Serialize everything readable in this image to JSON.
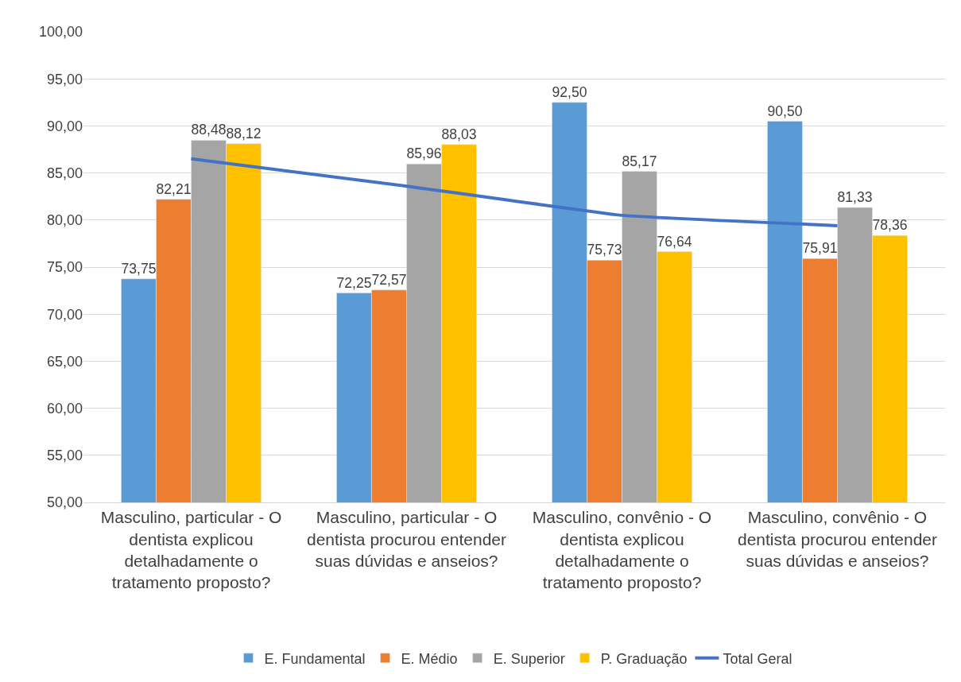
{
  "chart_data": {
    "type": "bar",
    "categories": [
      "Masculino, particular - O dentista explicou detalhadamente o tratamento proposto?",
      "Masculino, particular - O dentista procurou entender suas dúvidas e anseios?",
      "Masculino, convênio - O dentista explicou detalhadamente o tratamento proposto?",
      "Masculino, convênio - O dentista procurou entender suas dúvidas e anseios?"
    ],
    "series": [
      {
        "name": "E. Fundamental",
        "color": "#5b9bd5",
        "values": [
          73.75,
          72.25,
          92.5,
          90.5
        ],
        "value_labels": [
          "73,75",
          "72,25",
          "92,50",
          "90,50"
        ]
      },
      {
        "name": "E. Médio",
        "color": "#ed7d31",
        "values": [
          82.21,
          72.57,
          75.73,
          75.91
        ],
        "value_labels": [
          "82,21",
          "72,57",
          "75,73",
          "75,91"
        ]
      },
      {
        "name": "E. Superior",
        "color": "#a5a5a5",
        "values": [
          88.48,
          85.96,
          85.17,
          81.33
        ],
        "value_labels": [
          "88,48",
          "85,96",
          "85,17",
          "81,33"
        ]
      },
      {
        "name": "P. Graduação",
        "color": "#ffc000",
        "values": [
          88.12,
          88.03,
          76.64,
          78.36
        ],
        "value_labels": [
          "88,12",
          "88,03",
          "76,64",
          "78,36"
        ]
      },
      {
        "name": "Total Geral",
        "type": "line",
        "color": "#4472c4",
        "values": [
          86.5,
          83.6,
          80.5,
          79.4
        ],
        "marker": "none"
      }
    ],
    "ylim": [
      50,
      100
    ],
    "yticks": [
      {
        "value": 50,
        "label": "50,00"
      },
      {
        "value": 55,
        "label": "55,00"
      },
      {
        "value": 60,
        "label": "60,00"
      },
      {
        "value": 65,
        "label": "65,00"
      },
      {
        "value": 70,
        "label": "70,00"
      },
      {
        "value": 75,
        "label": "75,00"
      },
      {
        "value": 80,
        "label": "80,00"
      },
      {
        "value": 85,
        "label": "85,00"
      },
      {
        "value": 90,
        "label": "90,00"
      },
      {
        "value": 95,
        "label": "95,00"
      },
      {
        "value": 100,
        "label": "100,00"
      }
    ],
    "grid": "y",
    "legend": "bottom"
  }
}
